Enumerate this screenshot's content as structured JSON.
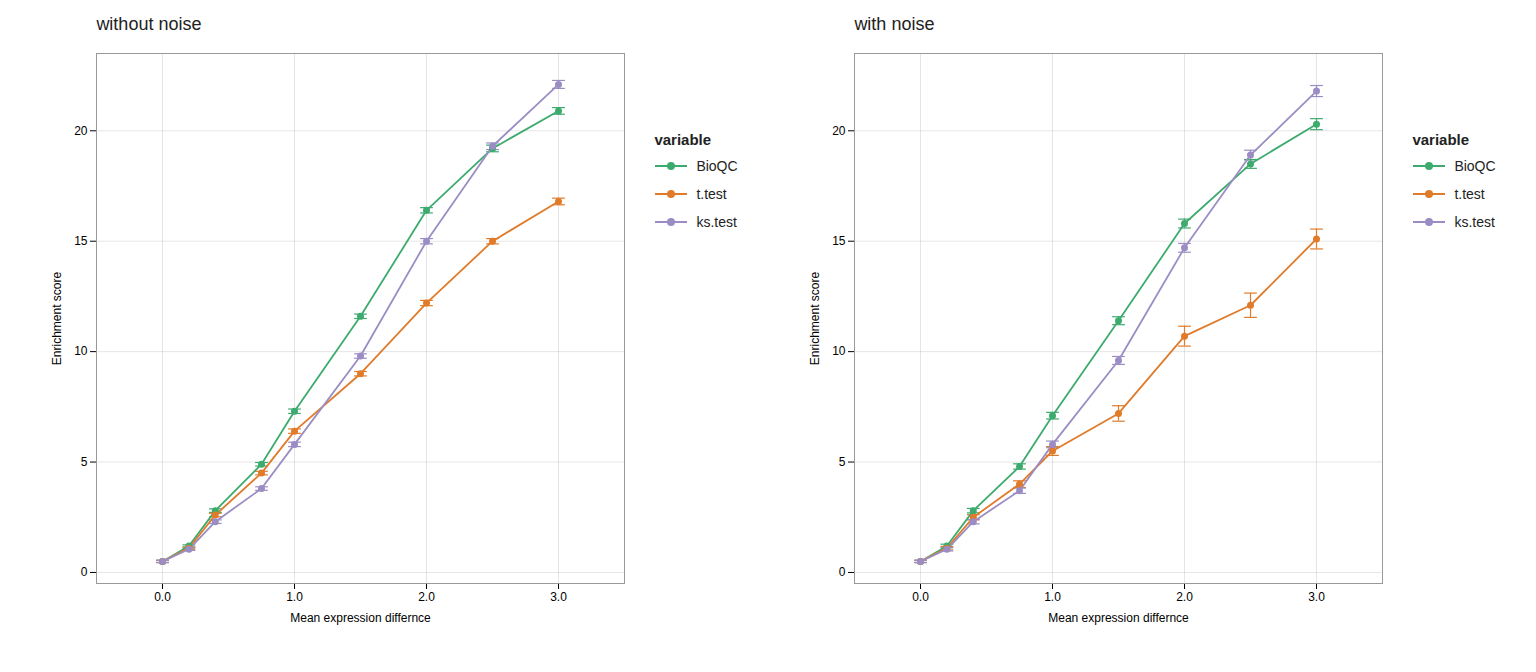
{
  "chart_data": [
    {
      "type": "line",
      "title": "without noise",
      "x_label": "Mean expression differnce",
      "y_label": "Enrichment score",
      "legend_title": "variable",
      "x": [
        0,
        0.2,
        0.4,
        0.75,
        1.0,
        1.5,
        2.0,
        2.5,
        3.0
      ],
      "series": [
        {
          "name": "BioQC",
          "color": "#3DAA6E",
          "values": [
            0.5,
            1.2,
            2.8,
            4.9,
            7.3,
            11.6,
            16.4,
            19.2,
            20.9
          ],
          "yerr": [
            0.05,
            0.05,
            0.08,
            0.08,
            0.1,
            0.1,
            0.12,
            0.15,
            0.15
          ]
        },
        {
          "name": "t.test",
          "color": "#E07B2A",
          "values": [
            0.5,
            1.1,
            2.6,
            4.5,
            6.4,
            9.0,
            12.2,
            15.0,
            16.8
          ],
          "yerr": [
            0.05,
            0.05,
            0.08,
            0.08,
            0.1,
            0.1,
            0.12,
            0.12,
            0.15
          ]
        },
        {
          "name": "ks.test",
          "color": "#9B8DC4",
          "values": [
            0.5,
            1.05,
            2.3,
            3.8,
            5.8,
            9.8,
            15.0,
            19.3,
            22.1
          ],
          "yerr": [
            0.05,
            0.05,
            0.08,
            0.08,
            0.1,
            0.1,
            0.12,
            0.15,
            0.18
          ]
        }
      ],
      "xlim": [
        -0.5,
        3.5
      ],
      "xticks": [
        0,
        1,
        2,
        3
      ],
      "ylim": [
        -0.5,
        23.5
      ],
      "yticks": [
        0,
        5,
        10,
        15,
        20
      ],
      "grid": true,
      "legend": "right",
      "marker": "circle"
    },
    {
      "type": "line",
      "title": "with noise",
      "x_label": "Mean expression differnce",
      "y_label": "Enrichment score",
      "legend_title": "variable",
      "x": [
        0,
        0.2,
        0.4,
        0.75,
        1.0,
        1.5,
        2.0,
        2.5,
        3.0
      ],
      "series": [
        {
          "name": "BioQC",
          "color": "#3DAA6E",
          "values": [
            0.5,
            1.2,
            2.8,
            4.8,
            7.1,
            11.4,
            15.8,
            18.5,
            20.3
          ],
          "yerr": [
            0.05,
            0.08,
            0.1,
            0.12,
            0.15,
            0.18,
            0.2,
            0.2,
            0.25
          ]
        },
        {
          "name": "t.test",
          "color": "#E07B2A",
          "values": [
            0.5,
            1.1,
            2.5,
            4.0,
            5.5,
            7.2,
            10.7,
            12.1,
            15.1
          ],
          "yerr": [
            0.05,
            0.08,
            0.12,
            0.15,
            0.2,
            0.35,
            0.45,
            0.55,
            0.45
          ]
        },
        {
          "name": "ks.test",
          "color": "#9B8DC4",
          "values": [
            0.5,
            1.05,
            2.3,
            3.7,
            5.8,
            9.6,
            14.7,
            18.9,
            21.8
          ],
          "yerr": [
            0.05,
            0.08,
            0.1,
            0.12,
            0.15,
            0.18,
            0.2,
            0.22,
            0.25
          ]
        }
      ],
      "xlim": [
        -0.5,
        3.5
      ],
      "xticks": [
        0,
        1,
        2,
        3
      ],
      "ylim": [
        -0.5,
        23.5
      ],
      "yticks": [
        0,
        5,
        10,
        15,
        20
      ],
      "grid": true,
      "legend": "right",
      "marker": "circle"
    }
  ]
}
